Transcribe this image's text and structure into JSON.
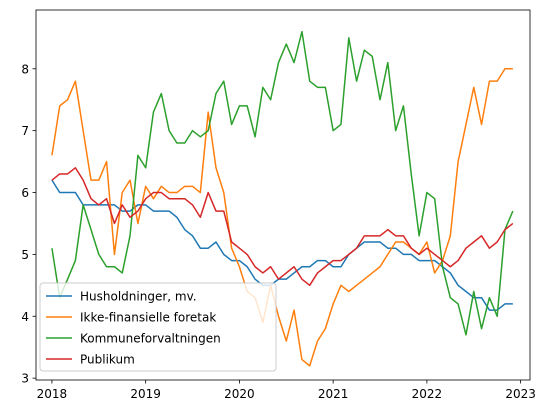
{
  "chart_data": {
    "type": "line",
    "title": "",
    "xlabel": "",
    "ylabel": "",
    "xlim": [
      2017.83,
      2023.1
    ],
    "ylim": [
      2.97,
      8.95
    ],
    "x_ticks": [
      2018,
      2019,
      2020,
      2021,
      2022,
      2023
    ],
    "x_tick_labels": [
      "2018",
      "2019",
      "2020",
      "2021",
      "2022",
      "2023"
    ],
    "y_ticks": [
      3,
      4,
      5,
      6,
      7,
      8
    ],
    "y_tick_labels": [
      "3",
      "4",
      "5",
      "6",
      "7",
      "8"
    ],
    "grid": false,
    "legend_position": "lower-left",
    "x": [
      2018.0,
      2018.083,
      2018.167,
      2018.25,
      2018.333,
      2018.417,
      2018.5,
      2018.583,
      2018.667,
      2018.75,
      2018.833,
      2018.917,
      2019.0,
      2019.083,
      2019.167,
      2019.25,
      2019.333,
      2019.417,
      2019.5,
      2019.583,
      2019.667,
      2019.75,
      2019.833,
      2019.917,
      2020.0,
      2020.083,
      2020.167,
      2020.25,
      2020.333,
      2020.417,
      2020.5,
      2020.583,
      2020.667,
      2020.75,
      2020.833,
      2020.917,
      2021.0,
      2021.083,
      2021.167,
      2021.25,
      2021.333,
      2021.417,
      2021.5,
      2021.583,
      2021.667,
      2021.75,
      2021.833,
      2021.917,
      2022.0,
      2022.083,
      2022.167,
      2022.25,
      2022.333,
      2022.417,
      2022.5,
      2022.583,
      2022.667,
      2022.75,
      2022.833,
      2022.917
    ],
    "series": [
      {
        "name": "Husholdninger, mv.",
        "color": "#1f77b4",
        "values": [
          6.2,
          6.0,
          6.0,
          6.0,
          5.8,
          5.8,
          5.8,
          5.8,
          5.8,
          5.7,
          5.7,
          5.8,
          5.8,
          5.7,
          5.7,
          5.7,
          5.6,
          5.4,
          5.3,
          5.1,
          5.1,
          5.2,
          5.0,
          4.9,
          4.9,
          4.8,
          4.6,
          4.5,
          4.5,
          4.6,
          4.6,
          4.7,
          4.8,
          4.8,
          4.9,
          4.9,
          4.8,
          4.8,
          5.0,
          5.1,
          5.2,
          5.2,
          5.2,
          5.1,
          5.1,
          5.0,
          5.0,
          4.9,
          4.9,
          4.9,
          4.8,
          4.7,
          4.5,
          4.4,
          4.3,
          4.3,
          4.1,
          4.1,
          4.2,
          4.2
        ]
      },
      {
        "name": "Ikke-finansielle foretak",
        "color": "#ff7f0e",
        "values": [
          6.6,
          7.4,
          7.5,
          7.8,
          7.0,
          6.2,
          6.2,
          6.5,
          5.0,
          6.0,
          6.2,
          5.5,
          6.1,
          5.9,
          6.1,
          6.0,
          6.0,
          6.1,
          6.1,
          6.0,
          7.3,
          6.4,
          6.0,
          5.1,
          4.8,
          4.4,
          4.3,
          3.9,
          4.5,
          4.0,
          3.6,
          4.1,
          3.3,
          3.2,
          3.6,
          3.8,
          4.2,
          4.5,
          4.4,
          4.5,
          4.6,
          4.7,
          4.8,
          5.0,
          5.2,
          5.2,
          5.1,
          5.0,
          5.2,
          4.7,
          4.9,
          5.3,
          6.5,
          7.1,
          7.7,
          7.1,
          7.8,
          7.8,
          8.0,
          8.0
        ]
      },
      {
        "name": "Kommuneforvaltningen",
        "color": "#2ca02c",
        "values": [
          5.1,
          4.3,
          4.6,
          4.9,
          5.8,
          5.4,
          5.0,
          4.8,
          4.8,
          4.7,
          5.3,
          6.6,
          6.4,
          7.3,
          7.6,
          7.0,
          6.8,
          6.8,
          7.0,
          6.9,
          7.0,
          7.6,
          7.8,
          7.1,
          7.4,
          7.4,
          6.9,
          7.7,
          7.5,
          8.1,
          8.4,
          8.1,
          8.6,
          7.8,
          7.7,
          7.7,
          7.0,
          7.1,
          8.5,
          7.8,
          8.3,
          8.2,
          7.5,
          8.1,
          7.0,
          7.4,
          6.3,
          5.3,
          6.0,
          5.9,
          4.8,
          4.3,
          4.2,
          3.7,
          4.4,
          3.8,
          4.3,
          4.0,
          5.4,
          5.7
        ]
      },
      {
        "name": "Publikum",
        "color": "#d62728",
        "values": [
          6.2,
          6.3,
          6.3,
          6.4,
          6.2,
          5.9,
          5.8,
          5.9,
          5.5,
          5.8,
          5.6,
          5.7,
          5.9,
          6.0,
          6.0,
          5.9,
          5.9,
          5.9,
          5.8,
          5.6,
          6.0,
          5.7,
          5.7,
          5.2,
          5.1,
          5.0,
          4.8,
          4.7,
          4.8,
          4.6,
          4.7,
          4.8,
          4.6,
          4.5,
          4.7,
          4.8,
          4.9,
          4.9,
          5.0,
          5.1,
          5.3,
          5.3,
          5.3,
          5.4,
          5.3,
          5.3,
          5.1,
          5.0,
          5.1,
          5.0,
          4.9,
          4.8,
          4.9,
          5.1,
          5.2,
          5.3,
          5.1,
          5.2,
          5.4,
          5.5
        ]
      }
    ]
  }
}
